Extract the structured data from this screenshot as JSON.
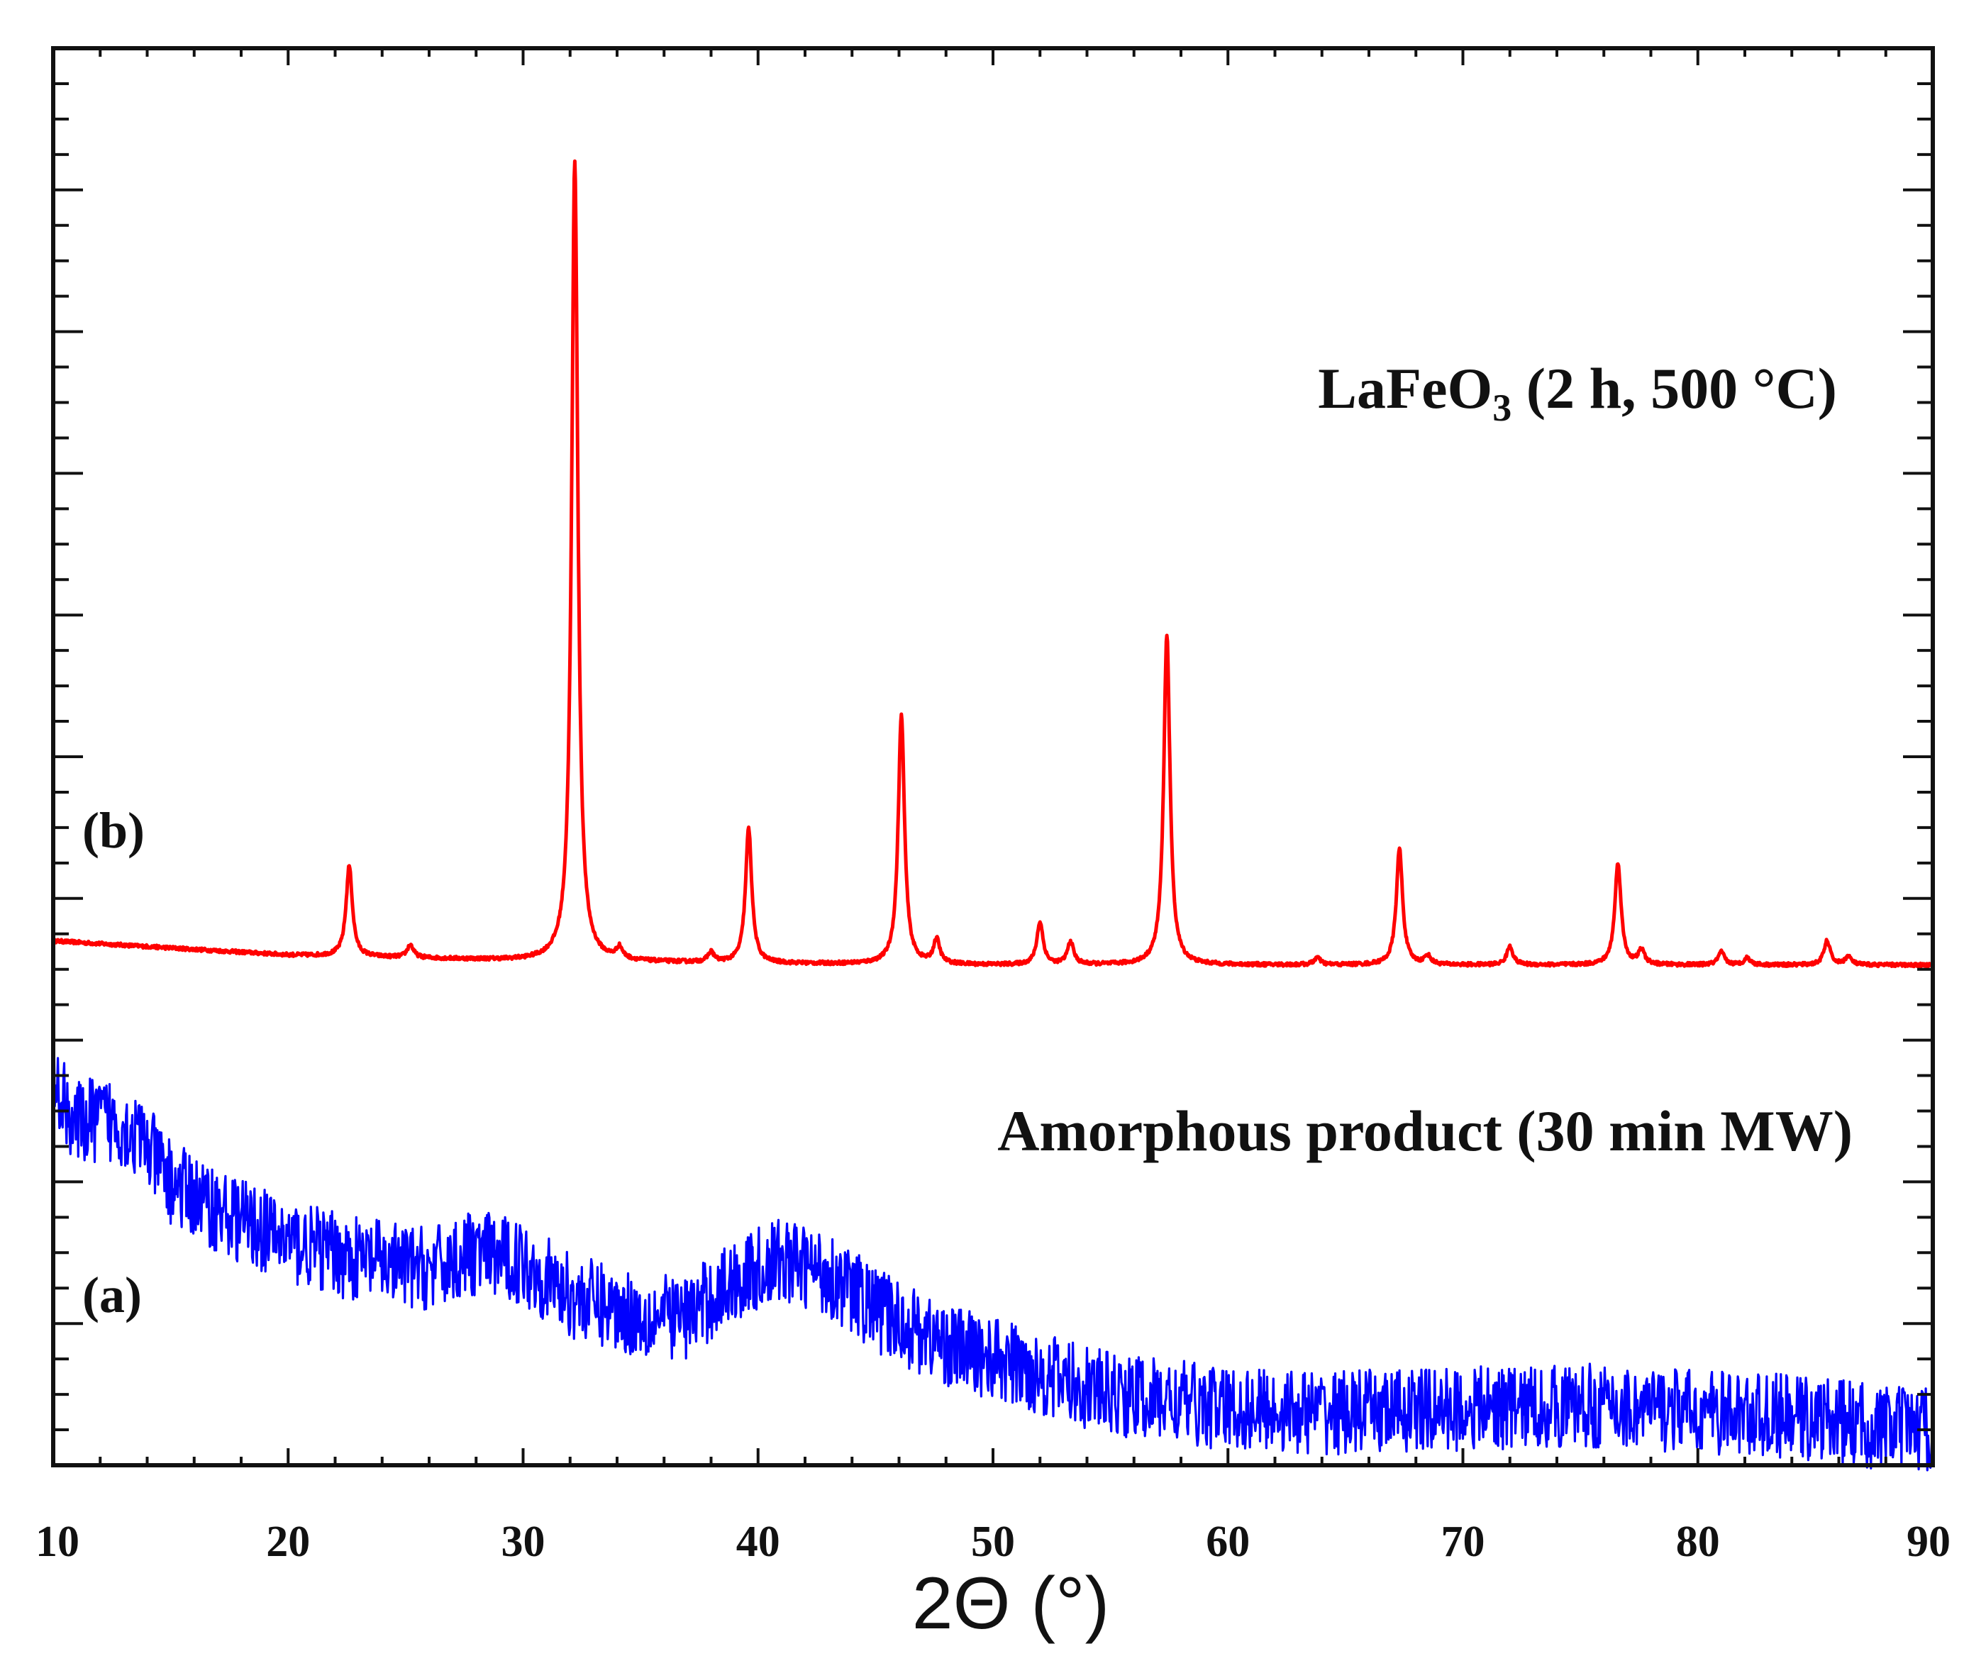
{
  "chart_data": {
    "type": "line",
    "title": "",
    "xlabel": "2Θ (°)",
    "ylabel": "",
    "xlim": [
      10,
      90
    ],
    "ylim": [
      0,
      100
    ],
    "xticks": [
      "10",
      "20",
      "30",
      "40",
      "50",
      "60",
      "70",
      "80",
      "90"
    ],
    "grid": false,
    "series": [
      {
        "name": "LaFeO3 (2 h, 500 °C)",
        "panel_label": "(b)",
        "color": "#ff0000",
        "baseline": [
          [
            10,
            37.0
          ],
          [
            20,
            36.0
          ],
          [
            30,
            35.6
          ],
          [
            40,
            35.4
          ],
          [
            50,
            35.3
          ],
          [
            60,
            35.3
          ],
          [
            70,
            35.3
          ],
          [
            80,
            35.3
          ],
          [
            90,
            35.3
          ]
        ],
        "peaks": [
          {
            "x": 22.6,
            "height": 6.4
          },
          {
            "x": 25.2,
            "height": 0.9
          },
          {
            "x": 32.2,
            "height": 56.5
          },
          {
            "x": 34.1,
            "height": 0.8
          },
          {
            "x": 38.0,
            "height": 0.7
          },
          {
            "x": 39.6,
            "height": 9.5
          },
          {
            "x": 46.1,
            "height": 17.6
          },
          {
            "x": 47.6,
            "height": 1.7
          },
          {
            "x": 52.0,
            "height": 3.0
          },
          {
            "x": 53.3,
            "height": 1.6
          },
          {
            "x": 57.4,
            "height": 23.3
          },
          {
            "x": 63.8,
            "height": 0.5
          },
          {
            "x": 67.3,
            "height": 8.2
          },
          {
            "x": 68.5,
            "height": 0.6
          },
          {
            "x": 72.0,
            "height": 1.3
          },
          {
            "x": 76.6,
            "height": 7.2
          },
          {
            "x": 77.6,
            "height": 1.0
          },
          {
            "x": 81.0,
            "height": 0.9
          },
          {
            "x": 82.1,
            "height": 0.5
          },
          {
            "x": 85.5,
            "height": 1.7
          },
          {
            "x": 86.4,
            "height": 0.6
          }
        ]
      },
      {
        "name": "Amorphous product (30 min MW)",
        "panel_label": "(a)",
        "color": "#0000ff",
        "noise_amplitude": 3.0,
        "baseline": [
          [
            10,
            27.0
          ],
          [
            11,
            24.0
          ],
          [
            12,
            24.5
          ],
          [
            13,
            24.0
          ],
          [
            14,
            22.5
          ],
          [
            15,
            20.0
          ],
          [
            17,
            18.0
          ],
          [
            20,
            15.8
          ],
          [
            23,
            14.5
          ],
          [
            26,
            13.8
          ],
          [
            28,
            15.0
          ],
          [
            30,
            14.3
          ],
          [
            32,
            12.0
          ],
          [
            35,
            10.5
          ],
          [
            37,
            10.5
          ],
          [
            39,
            13.0
          ],
          [
            41,
            14.5
          ],
          [
            43,
            13.5
          ],
          [
            45,
            11.0
          ],
          [
            48,
            8.5
          ],
          [
            50,
            7.5
          ],
          [
            55,
            5.0
          ],
          [
            60,
            4.0
          ],
          [
            65,
            3.7
          ],
          [
            70,
            4.0
          ],
          [
            75,
            4.2
          ],
          [
            80,
            3.8
          ],
          [
            85,
            3.3
          ],
          [
            88,
            2.6
          ],
          [
            90,
            2.6
          ]
        ]
      }
    ],
    "annotations": [
      {
        "text": "LaFeO",
        "subscript": "3",
        "suffix": " (2 h, 500 °C)"
      },
      {
        "text": "Amorphous product (30 min MW)"
      },
      {
        "text": "(b)"
      },
      {
        "text": "(a)"
      }
    ]
  }
}
